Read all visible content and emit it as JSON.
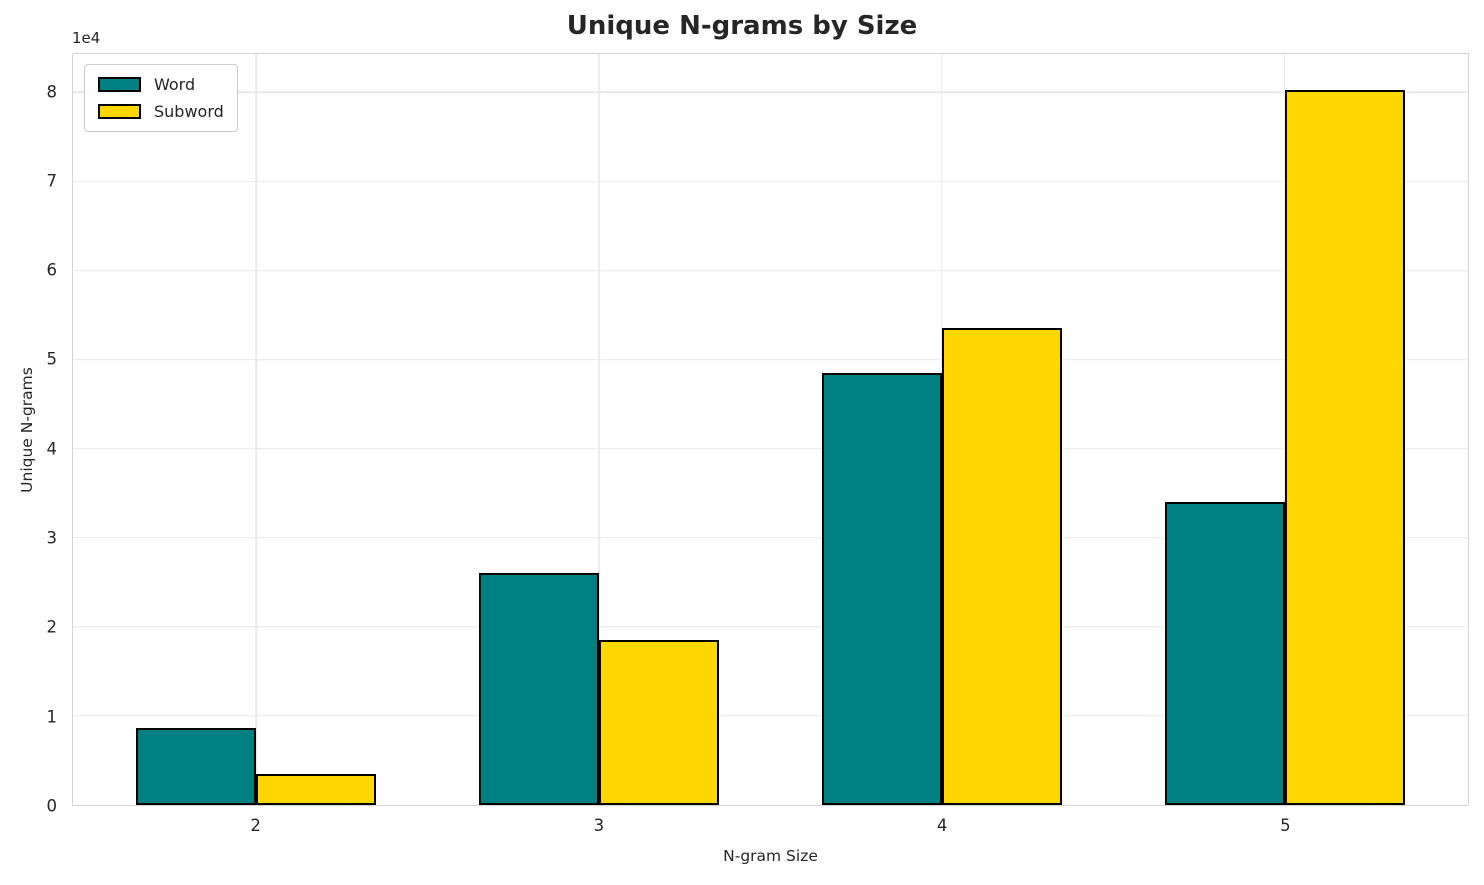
{
  "chart_data": {
    "type": "bar",
    "title": "Unique N-grams by Size",
    "xlabel": "N-gram Size",
    "ylabel": "Unique N-grams",
    "y_offset_label": "1e4",
    "categories": [
      "2",
      "3",
      "4",
      "5"
    ],
    "series": [
      {
        "name": "Word",
        "color": "#008080",
        "values": [
          8700,
          26000,
          48500,
          34000
        ]
      },
      {
        "name": "Subword",
        "color": "#FFD700",
        "values": [
          3500,
          18500,
          53500,
          80300
        ]
      }
    ],
    "bar_edge_color": "#000000",
    "bar_width": 0.35,
    "xlim": [
      -0.535,
      3.535
    ],
    "ylim": [
      0,
      84315
    ],
    "yticks": {
      "values": [
        0,
        10000,
        20000,
        30000,
        40000,
        50000,
        60000,
        70000,
        80000
      ],
      "labels": [
        "0",
        "1",
        "2",
        "3",
        "4",
        "5",
        "6",
        "7",
        "8"
      ]
    },
    "grid": true,
    "legend_position": "upper left",
    "colors": {
      "grid": "#e9e9e9",
      "spine": "#d4d4d4",
      "text": "#262626"
    }
  }
}
